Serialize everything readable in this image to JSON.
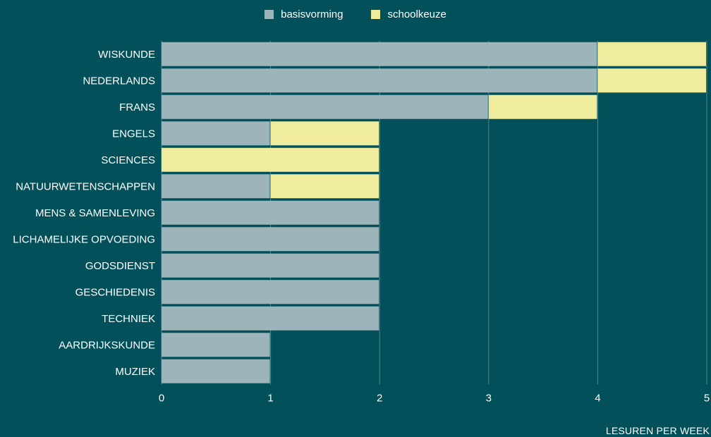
{
  "colors": {
    "background": "#02505a",
    "basisvorming": "#9db5ba",
    "schoolkeuze": "#f0ec9e",
    "grid": "#4e8a90",
    "text": "#ffffff"
  },
  "chart_data": {
    "type": "bar",
    "orientation": "horizontal",
    "stacked": true,
    "categories": [
      "WISKUNDE",
      "NEDERLANDS",
      "FRANS",
      "ENGELS",
      "SCIENCES",
      "NATUURWETENSCHAPPEN",
      "MENS & SAMENLEVING",
      "LICHAMELIJKE OPVOEDING",
      "GODSDIENST",
      "GESCHIEDENIS",
      "TECHNIEK",
      "AARDRIJKSKUNDE",
      "MUZIEK"
    ],
    "series": [
      {
        "name": "basisvorming",
        "color": "#9db5ba",
        "values": [
          4,
          4,
          3,
          1,
          0,
          1,
          2,
          2,
          2,
          2,
          2,
          1,
          1
        ]
      },
      {
        "name": "schoolkeuze",
        "color": "#f0ec9e",
        "values": [
          1,
          1,
          1,
          1,
          2,
          1,
          0,
          0,
          0,
          0,
          0,
          0,
          0
        ]
      }
    ],
    "xlim": [
      0,
      5
    ],
    "xticks": [
      "0",
      "1",
      "2",
      "3",
      "4",
      "5"
    ],
    "xlabel": "LESUREN PER WEEK",
    "ylabel": "",
    "title": "",
    "grid": "vertical",
    "legend_position": "top-center"
  }
}
